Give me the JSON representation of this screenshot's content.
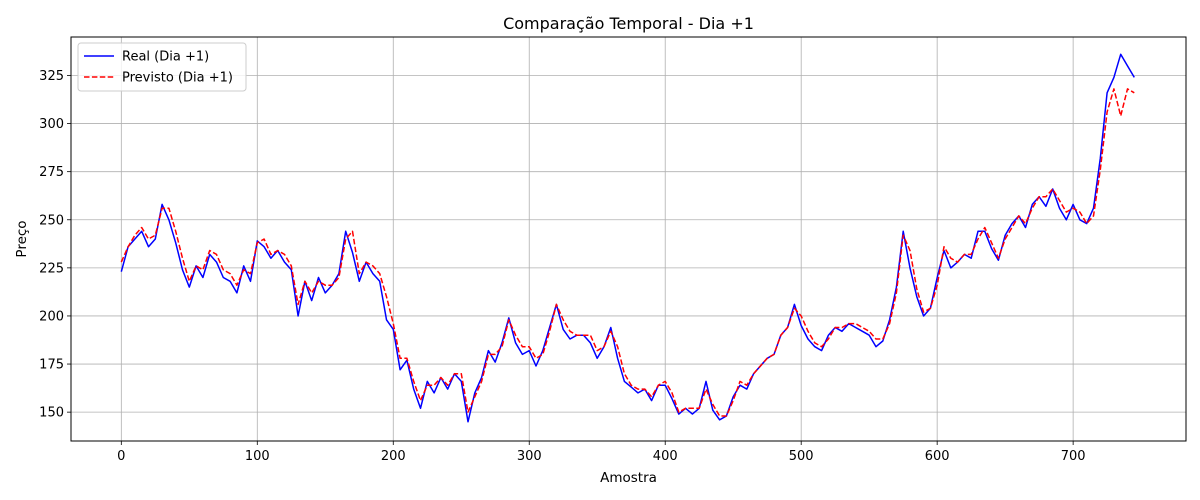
{
  "chart_data": {
    "type": "line",
    "title": "Comparação Temporal - Dia +1",
    "xlabel": "Amostra",
    "ylabel": "Preço",
    "xlim": [
      -37,
      783
    ],
    "ylim": [
      135,
      345
    ],
    "xticks": [
      0,
      100,
      200,
      300,
      400,
      500,
      600,
      700
    ],
    "yticks": [
      150,
      175,
      200,
      225,
      250,
      275,
      300,
      325
    ],
    "grid": true,
    "legend_position": "top-left",
    "series": [
      {
        "name": "Real (Dia +1)",
        "color": "#0000ff",
        "style": "solid",
        "x": [
          0,
          5,
          10,
          15,
          20,
          25,
          30,
          35,
          40,
          45,
          50,
          55,
          60,
          65,
          70,
          75,
          80,
          85,
          90,
          95,
          100,
          105,
          110,
          115,
          120,
          125,
          130,
          135,
          140,
          145,
          150,
          155,
          160,
          165,
          170,
          175,
          180,
          185,
          190,
          195,
          200,
          205,
          210,
          215,
          220,
          225,
          230,
          235,
          240,
          245,
          250,
          255,
          260,
          265,
          270,
          275,
          280,
          285,
          290,
          295,
          300,
          305,
          310,
          315,
          320,
          325,
          330,
          335,
          340,
          345,
          350,
          355,
          360,
          365,
          370,
          375,
          380,
          385,
          390,
          395,
          400,
          405,
          410,
          415,
          420,
          425,
          430,
          435,
          440,
          445,
          450,
          455,
          460,
          465,
          470,
          475,
          480,
          485,
          490,
          495,
          500,
          505,
          510,
          515,
          520,
          525,
          530,
          535,
          540,
          545,
          550,
          555,
          560,
          565,
          570,
          575,
          580,
          585,
          590,
          595,
          600,
          605,
          610,
          615,
          620,
          625,
          630,
          635,
          640,
          645,
          650,
          655,
          660,
          665,
          670,
          675,
          680,
          685,
          690,
          695,
          700,
          705,
          710,
          715,
          720,
          725,
          730,
          735,
          740,
          745
        ],
        "values": [
          223,
          236,
          240,
          244,
          236,
          240,
          258,
          250,
          238,
          224,
          215,
          226,
          220,
          232,
          228,
          220,
          218,
          212,
          226,
          218,
          239,
          236,
          230,
          234,
          228,
          224,
          200,
          218,
          208,
          220,
          212,
          216,
          222,
          244,
          233,
          218,
          228,
          222,
          218,
          198,
          193,
          172,
          177,
          162,
          152,
          166,
          160,
          168,
          162,
          170,
          166,
          145,
          160,
          168,
          182,
          176,
          186,
          199,
          186,
          180,
          182,
          174,
          182,
          194,
          206,
          193,
          188,
          190,
          190,
          186,
          178,
          184,
          194,
          178,
          166,
          163,
          160,
          162,
          156,
          164,
          164,
          157,
          149,
          152,
          149,
          152,
          166,
          151,
          146,
          148,
          158,
          164,
          162,
          170,
          174,
          178,
          180,
          190,
          194,
          206,
          195,
          188,
          184,
          182,
          190,
          194,
          192,
          196,
          194,
          192,
          190,
          184,
          187,
          198,
          215,
          244,
          225,
          210,
          200,
          204,
          220,
          234,
          225,
          228,
          232,
          230,
          244,
          244,
          235,
          229,
          242,
          248,
          252,
          246,
          258,
          262,
          257,
          266,
          256,
          250,
          258,
          250,
          248,
          256,
          282,
          316,
          324,
          336,
          330,
          324
        ]
      },
      {
        "name": "Previsto (Dia +1)",
        "color": "#ff0000",
        "style": "dashed",
        "x": [
          0,
          5,
          10,
          15,
          20,
          25,
          30,
          35,
          40,
          45,
          50,
          55,
          60,
          65,
          70,
          75,
          80,
          85,
          90,
          95,
          100,
          105,
          110,
          115,
          120,
          125,
          130,
          135,
          140,
          145,
          150,
          155,
          160,
          165,
          170,
          175,
          180,
          185,
          190,
          195,
          200,
          205,
          210,
          215,
          220,
          225,
          230,
          235,
          240,
          245,
          250,
          255,
          260,
          265,
          270,
          275,
          280,
          285,
          290,
          295,
          300,
          305,
          310,
          315,
          320,
          325,
          330,
          335,
          340,
          345,
          350,
          355,
          360,
          365,
          370,
          375,
          380,
          385,
          390,
          395,
          400,
          405,
          410,
          415,
          420,
          425,
          430,
          435,
          440,
          445,
          450,
          455,
          460,
          465,
          470,
          475,
          480,
          485,
          490,
          495,
          500,
          505,
          510,
          515,
          520,
          525,
          530,
          535,
          540,
          545,
          550,
          555,
          560,
          565,
          570,
          575,
          580,
          585,
          590,
          595,
          600,
          605,
          610,
          615,
          620,
          625,
          630,
          635,
          640,
          645,
          650,
          655,
          660,
          665,
          670,
          675,
          680,
          685,
          690,
          695,
          700,
          705,
          710,
          715,
          720,
          725,
          730,
          735,
          740,
          745
        ],
        "values": [
          228,
          236,
          242,
          246,
          240,
          242,
          256,
          256,
          244,
          230,
          218,
          226,
          224,
          234,
          232,
          224,
          222,
          216,
          224,
          222,
          238,
          240,
          232,
          234,
          232,
          226,
          206,
          218,
          212,
          218,
          216,
          216,
          220,
          240,
          244,
          222,
          228,
          226,
          222,
          210,
          196,
          178,
          178,
          166,
          156,
          164,
          164,
          168,
          164,
          170,
          170,
          150,
          158,
          166,
          180,
          180,
          184,
          198,
          190,
          184,
          184,
          178,
          180,
          192,
          206,
          198,
          192,
          190,
          190,
          190,
          182,
          184,
          192,
          184,
          170,
          164,
          162,
          162,
          158,
          164,
          166,
          160,
          150,
          152,
          152,
          152,
          162,
          154,
          148,
          148,
          156,
          166,
          164,
          170,
          174,
          178,
          180,
          190,
          194,
          204,
          200,
          192,
          186,
          184,
          188,
          194,
          194,
          196,
          196,
          194,
          192,
          188,
          188,
          196,
          212,
          242,
          234,
          214,
          202,
          204,
          216,
          236,
          230,
          228,
          232,
          232,
          240,
          246,
          238,
          230,
          240,
          246,
          252,
          248,
          256,
          262,
          262,
          266,
          260,
          254,
          256,
          254,
          248,
          252,
          276,
          306,
          318,
          304,
          318,
          316
        ]
      }
    ]
  }
}
